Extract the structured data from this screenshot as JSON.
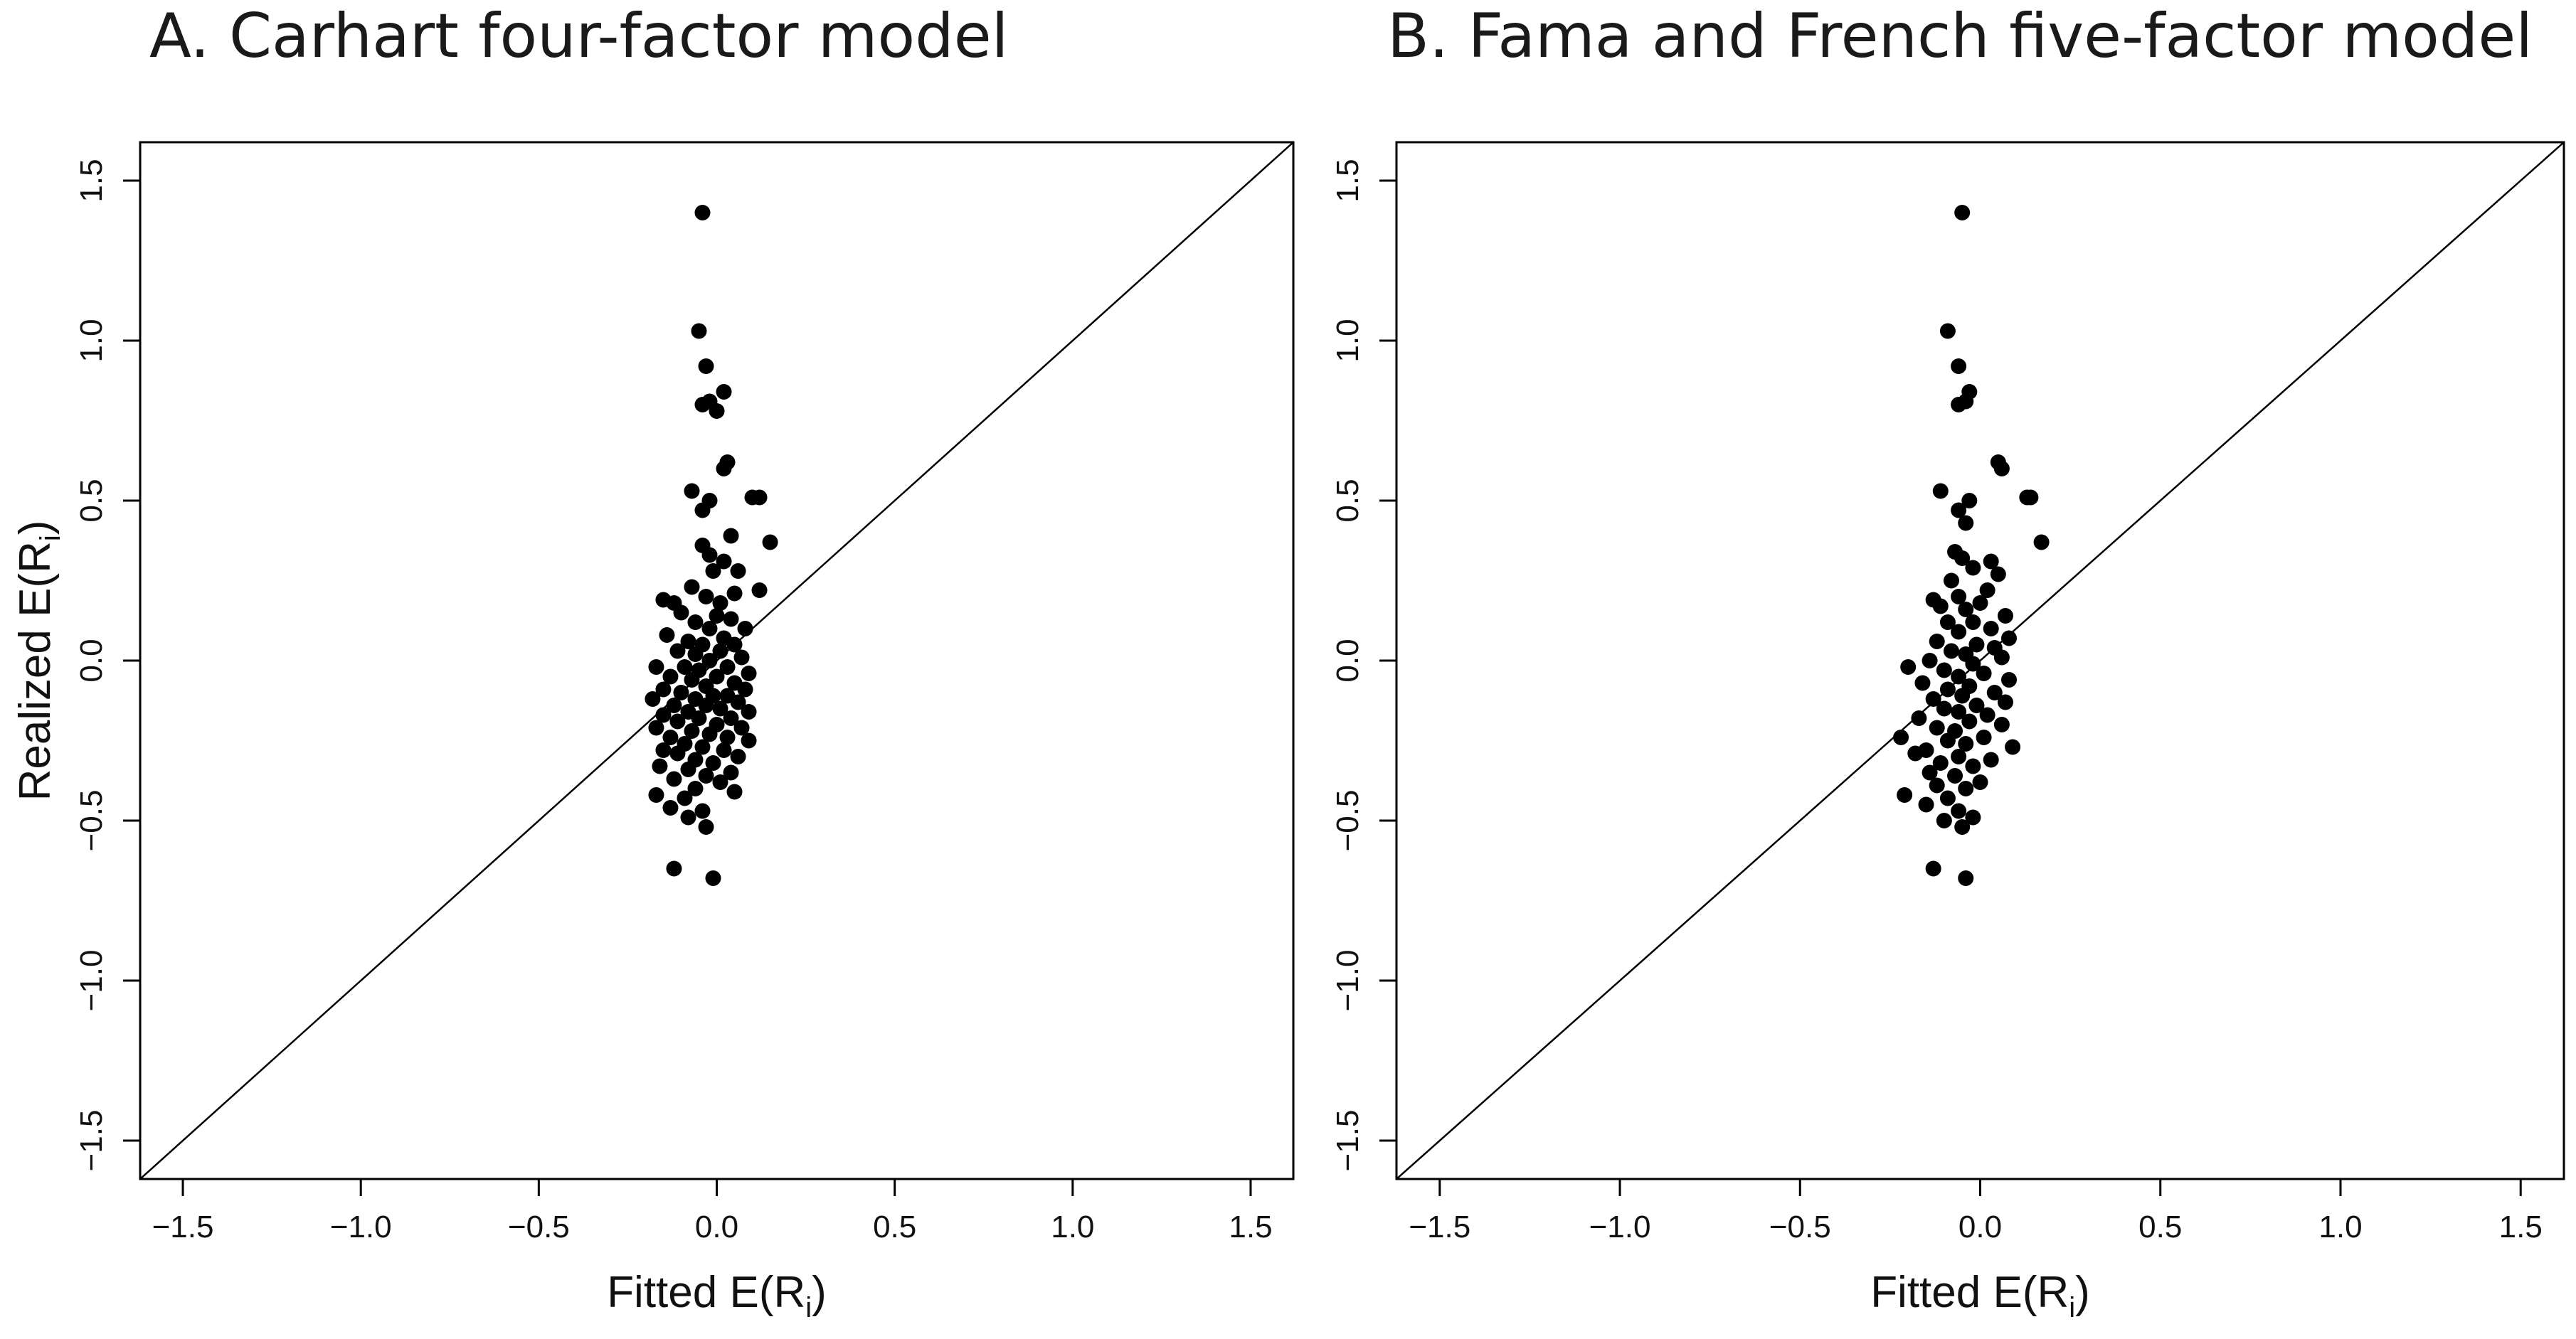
{
  "chart_data": [
    {
      "type": "scatter",
      "title": "A. Carhart four-factor model",
      "xlabel": "Fitted E(R",
      "xlabel_sub": "i",
      "xlabel_close": ")",
      "ylabel": "Realized E(R",
      "ylabel_sub": "i",
      "ylabel_close": ")",
      "xlim": [
        -1.62,
        1.62
      ],
      "ylim": [
        -1.62,
        1.62
      ],
      "xticks": [
        -1.5,
        -1.0,
        -0.5,
        0.0,
        0.5,
        1.0,
        1.5
      ],
      "xtick_labels": [
        "−1.5",
        "−1.0",
        "−0.5",
        "0.0",
        "0.5",
        "1.0",
        "1.5"
      ],
      "yticks": [
        -1.5,
        -1.0,
        -0.5,
        0.0,
        0.5,
        1.0,
        1.5
      ],
      "ytick_labels": [
        "−1.5",
        "−1.0",
        "−0.5",
        "0.0",
        "0.5",
        "1.0",
        "1.5"
      ],
      "reference_line": "y = x",
      "marker_color": "#000000",
      "points": [
        [
          -0.04,
          1.4
        ],
        [
          -0.05,
          1.03
        ],
        [
          -0.03,
          0.92
        ],
        [
          0.02,
          0.84
        ],
        [
          -0.02,
          0.81
        ],
        [
          -0.04,
          0.8
        ],
        [
          0.0,
          0.78
        ],
        [
          0.03,
          0.62
        ],
        [
          0.02,
          0.6
        ],
        [
          0.1,
          0.51
        ],
        [
          0.12,
          0.51
        ],
        [
          -0.07,
          0.53
        ],
        [
          -0.02,
          0.5
        ],
        [
          -0.04,
          0.47
        ],
        [
          0.15,
          0.37
        ],
        [
          0.04,
          0.39
        ],
        [
          -0.04,
          0.36
        ],
        [
          -0.02,
          0.33
        ],
        [
          0.02,
          0.31
        ],
        [
          0.06,
          0.28
        ],
        [
          -0.01,
          0.28
        ],
        [
          0.12,
          0.22
        ],
        [
          -0.07,
          0.23
        ],
        [
          0.05,
          0.21
        ],
        [
          -0.15,
          0.19
        ],
        [
          -0.12,
          0.18
        ],
        [
          -0.03,
          0.2
        ],
        [
          0.01,
          0.18
        ],
        [
          -0.1,
          0.15
        ],
        [
          0.0,
          0.14
        ],
        [
          0.04,
          0.13
        ],
        [
          -0.06,
          0.12
        ],
        [
          0.08,
          0.1
        ],
        [
          -0.02,
          0.1
        ],
        [
          -0.14,
          0.08
        ],
        [
          0.02,
          0.07
        ],
        [
          -0.08,
          0.06
        ],
        [
          0.05,
          0.05
        ],
        [
          -0.04,
          0.05
        ],
        [
          -0.11,
          0.03
        ],
        [
          0.01,
          0.03
        ],
        [
          -0.06,
          0.02
        ],
        [
          0.07,
          0.01
        ],
        [
          -0.02,
          0.0
        ],
        [
          -0.17,
          -0.02
        ],
        [
          -0.09,
          -0.02
        ],
        [
          0.03,
          -0.02
        ],
        [
          -0.05,
          -0.03
        ],
        [
          0.09,
          -0.04
        ],
        [
          -0.13,
          -0.05
        ],
        [
          0.0,
          -0.05
        ],
        [
          -0.07,
          -0.06
        ],
        [
          0.05,
          -0.07
        ],
        [
          -0.03,
          -0.08
        ],
        [
          -0.15,
          -0.09
        ],
        [
          0.08,
          -0.09
        ],
        [
          -0.1,
          -0.1
        ],
        [
          -0.01,
          -0.11
        ],
        [
          0.03,
          -0.11
        ],
        [
          -0.06,
          -0.12
        ],
        [
          -0.18,
          -0.12
        ],
        [
          0.06,
          -0.13
        ],
        [
          -0.12,
          -0.14
        ],
        [
          -0.03,
          -0.14
        ],
        [
          0.01,
          -0.15
        ],
        [
          -0.08,
          -0.16
        ],
        [
          0.09,
          -0.16
        ],
        [
          -0.15,
          -0.17
        ],
        [
          -0.05,
          -0.18
        ],
        [
          0.04,
          -0.18
        ],
        [
          -0.11,
          -0.19
        ],
        [
          0.0,
          -0.2
        ],
        [
          -0.17,
          -0.21
        ],
        [
          0.07,
          -0.21
        ],
        [
          -0.07,
          -0.22
        ],
        [
          -0.02,
          -0.23
        ],
        [
          -0.13,
          -0.24
        ],
        [
          0.03,
          -0.24
        ],
        [
          0.09,
          -0.25
        ],
        [
          -0.09,
          -0.26
        ],
        [
          -0.04,
          -0.27
        ],
        [
          -0.15,
          -0.28
        ],
        [
          0.02,
          -0.28
        ],
        [
          -0.11,
          -0.29
        ],
        [
          0.06,
          -0.3
        ],
        [
          -0.06,
          -0.31
        ],
        [
          -0.01,
          -0.32
        ],
        [
          -0.16,
          -0.33
        ],
        [
          -0.08,
          -0.34
        ],
        [
          0.04,
          -0.35
        ],
        [
          -0.03,
          -0.36
        ],
        [
          -0.12,
          -0.37
        ],
        [
          0.01,
          -0.38
        ],
        [
          -0.06,
          -0.4
        ],
        [
          0.05,
          -0.41
        ],
        [
          -0.17,
          -0.42
        ],
        [
          -0.09,
          -0.43
        ],
        [
          -0.13,
          -0.46
        ],
        [
          -0.04,
          -0.47
        ],
        [
          -0.08,
          -0.49
        ],
        [
          -0.03,
          -0.52
        ],
        [
          -0.12,
          -0.65
        ],
        [
          -0.01,
          -0.68
        ]
      ]
    },
    {
      "type": "scatter",
      "title": "B. Fama and French five-factor model",
      "xlabel": "Fitted E(R",
      "xlabel_sub": "i",
      "xlabel_close": ")",
      "xlim": [
        -1.62,
        1.62
      ],
      "ylim": [
        -1.62,
        1.62
      ],
      "xticks": [
        -1.5,
        -1.0,
        -0.5,
        0.0,
        0.5,
        1.0,
        1.5
      ],
      "xtick_labels": [
        "−1.5",
        "−1.0",
        "−0.5",
        "0.0",
        "0.5",
        "1.0",
        "1.5"
      ],
      "yticks": [
        -1.5,
        -1.0,
        -0.5,
        0.0,
        0.5,
        1.0,
        1.5
      ],
      "ytick_labels": [
        "−1.5",
        "−1.0",
        "−0.5",
        "0.0",
        "0.5",
        "1.0",
        "1.5"
      ],
      "reference_line": "y = x",
      "marker_color": "#000000",
      "points": [
        [
          -0.05,
          1.4
        ],
        [
          -0.09,
          1.03
        ],
        [
          -0.06,
          0.92
        ],
        [
          -0.03,
          0.84
        ],
        [
          -0.04,
          0.81
        ],
        [
          -0.06,
          0.8
        ],
        [
          0.05,
          0.62
        ],
        [
          0.06,
          0.6
        ],
        [
          0.13,
          0.51
        ],
        [
          0.14,
          0.51
        ],
        [
          -0.11,
          0.53
        ],
        [
          -0.03,
          0.5
        ],
        [
          -0.06,
          0.47
        ],
        [
          0.17,
          0.37
        ],
        [
          -0.04,
          0.43
        ],
        [
          -0.07,
          0.34
        ],
        [
          -0.05,
          0.32
        ],
        [
          0.03,
          0.31
        ],
        [
          -0.02,
          0.29
        ],
        [
          0.05,
          0.27
        ],
        [
          -0.08,
          0.25
        ],
        [
          0.02,
          0.22
        ],
        [
          -0.06,
          0.2
        ],
        [
          -0.13,
          0.19
        ],
        [
          -0.11,
          0.17
        ],
        [
          0.0,
          0.18
        ],
        [
          -0.04,
          0.16
        ],
        [
          0.07,
          0.14
        ],
        [
          -0.02,
          0.12
        ],
        [
          -0.09,
          0.12
        ],
        [
          0.03,
          0.1
        ],
        [
          -0.06,
          0.09
        ],
        [
          0.08,
          0.07
        ],
        [
          -0.12,
          0.06
        ],
        [
          -0.01,
          0.05
        ],
        [
          0.04,
          0.04
        ],
        [
          -0.08,
          0.03
        ],
        [
          -0.04,
          0.02
        ],
        [
          0.06,
          0.01
        ],
        [
          -0.14,
          0.0
        ],
        [
          -0.02,
          -0.01
        ],
        [
          -0.2,
          -0.02
        ],
        [
          -0.1,
          -0.03
        ],
        [
          0.01,
          -0.04
        ],
        [
          -0.06,
          -0.05
        ],
        [
          0.08,
          -0.06
        ],
        [
          -0.16,
          -0.07
        ],
        [
          -0.03,
          -0.08
        ],
        [
          -0.09,
          -0.09
        ],
        [
          0.04,
          -0.1
        ],
        [
          -0.05,
          -0.11
        ],
        [
          -0.13,
          -0.12
        ],
        [
          0.07,
          -0.13
        ],
        [
          -0.01,
          -0.14
        ],
        [
          -0.1,
          -0.15
        ],
        [
          -0.06,
          -0.16
        ],
        [
          0.02,
          -0.17
        ],
        [
          -0.17,
          -0.18
        ],
        [
          -0.03,
          -0.19
        ],
        [
          0.06,
          -0.2
        ],
        [
          -0.12,
          -0.21
        ],
        [
          -0.07,
          -0.22
        ],
        [
          -0.22,
          -0.24
        ],
        [
          0.01,
          -0.24
        ],
        [
          -0.09,
          -0.25
        ],
        [
          -0.04,
          -0.26
        ],
        [
          0.09,
          -0.27
        ],
        [
          -0.15,
          -0.28
        ],
        [
          -0.18,
          -0.29
        ],
        [
          -0.06,
          -0.3
        ],
        [
          0.03,
          -0.31
        ],
        [
          -0.11,
          -0.32
        ],
        [
          -0.02,
          -0.33
        ],
        [
          -0.14,
          -0.35
        ],
        [
          -0.07,
          -0.36
        ],
        [
          0.0,
          -0.38
        ],
        [
          -0.12,
          -0.39
        ],
        [
          -0.04,
          -0.4
        ],
        [
          -0.21,
          -0.42
        ],
        [
          -0.09,
          -0.43
        ],
        [
          -0.15,
          -0.45
        ],
        [
          -0.06,
          -0.47
        ],
        [
          -0.02,
          -0.49
        ],
        [
          -0.1,
          -0.5
        ],
        [
          -0.05,
          -0.52
        ],
        [
          -0.13,
          -0.65
        ],
        [
          -0.04,
          -0.68
        ]
      ]
    }
  ]
}
